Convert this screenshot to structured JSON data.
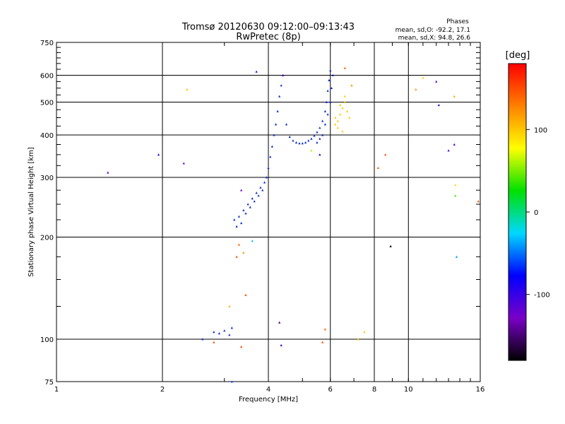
{
  "chart_data": {
    "type": "scatter",
    "title": "Tromsø 20120630 09:12:00–09:13:43",
    "subtitle": "RwPretec (8p)",
    "xlabel": "Frequency [MHz]",
    "ylabel": "Stationary phase Virtual Height [km]",
    "x_scale": "log",
    "y_scale": "log",
    "xlim": [
      1,
      16
    ],
    "ylim": [
      75,
      750
    ],
    "x_ticks": [
      1,
      2,
      4,
      6,
      8,
      10,
      16
    ],
    "y_ticks": [
      75,
      100,
      200,
      300,
      400,
      500,
      600,
      750
    ],
    "grid": true,
    "annotation": {
      "title": "Phases",
      "line1": "mean, sd,O: -92.2, 17.1",
      "line2": "mean, sd,X:  94.8, 26.6"
    },
    "colorbar": {
      "label": "[deg]",
      "ticks": [
        100,
        0,
        -100
      ],
      "range": [
        -180,
        180
      ],
      "colors": [
        "#000000",
        "#7a00c8",
        "#0000ff",
        "#00d8ff",
        "#00e000",
        "#ffff00",
        "#ff8000",
        "#ff0000"
      ]
    },
    "o_trace": {
      "color": "#0a2cd8",
      "points": [
        [
          3.2,
          225
        ],
        [
          3.3,
          230
        ],
        [
          3.4,
          240
        ],
        [
          3.5,
          250
        ],
        [
          3.6,
          260
        ],
        [
          3.7,
          270
        ],
        [
          3.8,
          280
        ],
        [
          3.9,
          290
        ],
        [
          3.95,
          300
        ],
        [
          4.0,
          320
        ],
        [
          4.05,
          345
        ],
        [
          4.1,
          370
        ],
        [
          4.15,
          400
        ],
        [
          4.2,
          430
        ],
        [
          4.25,
          470
        ],
        [
          4.3,
          520
        ],
        [
          4.35,
          560
        ],
        [
          4.4,
          600
        ],
        [
          4.5,
          430
        ],
        [
          4.6,
          395
        ],
        [
          4.7,
          385
        ],
        [
          4.8,
          380
        ],
        [
          4.9,
          378
        ],
        [
          5.0,
          378
        ],
        [
          5.1,
          380
        ],
        [
          5.2,
          385
        ],
        [
          5.3,
          390
        ],
        [
          5.4,
          398
        ],
        [
          5.5,
          408
        ],
        [
          5.6,
          420
        ],
        [
          5.7,
          440
        ],
        [
          5.8,
          470
        ],
        [
          5.85,
          500
        ],
        [
          5.9,
          540
        ],
        [
          5.95,
          580
        ],
        [
          6.0,
          620
        ],
        [
          5.5,
          380
        ],
        [
          5.6,
          390
        ],
        [
          5.7,
          400
        ],
        [
          5.8,
          430
        ],
        [
          5.9,
          460
        ],
        [
          6.0,
          500
        ],
        [
          6.05,
          550
        ],
        [
          6.1,
          600
        ],
        [
          2.9,
          104
        ],
        [
          3.0,
          106
        ],
        [
          3.1,
          103
        ],
        [
          3.15,
          108
        ],
        [
          2.8,
          105
        ],
        [
          2.6,
          100
        ],
        [
          3.25,
          215
        ],
        [
          3.35,
          220
        ],
        [
          3.45,
          235
        ],
        [
          3.55,
          245
        ],
        [
          3.65,
          255
        ],
        [
          3.75,
          265
        ],
        [
          3.85,
          275
        ]
      ]
    },
    "x_trace": {
      "color": "#ffcc00",
      "points": [
        [
          6.2,
          430
        ],
        [
          6.3,
          440
        ],
        [
          6.4,
          460
        ],
        [
          6.5,
          480
        ],
        [
          6.6,
          500
        ],
        [
          6.7,
          470
        ],
        [
          6.8,
          450
        ],
        [
          6.3,
          420
        ],
        [
          6.5,
          410
        ],
        [
          6.2,
          450
        ],
        [
          6.4,
          490
        ],
        [
          6.6,
          520
        ],
        [
          6.9,
          560
        ]
      ]
    },
    "scatter_points": [
      [
        1.4,
        310,
        -110
      ],
      [
        1.95,
        350,
        -95
      ],
      [
        2.3,
        330,
        -120
      ],
      [
        2.35,
        545,
        100
      ],
      [
        3.7,
        615,
        -95
      ],
      [
        4.4,
        600,
        -120
      ],
      [
        3.35,
        275,
        -120
      ],
      [
        3.6,
        195,
        -30
      ],
      [
        3.3,
        190,
        140
      ],
      [
        3.4,
        180,
        120
      ],
      [
        3.25,
        175,
        150
      ],
      [
        3.45,
        135,
        150
      ],
      [
        3.1,
        125,
        110
      ],
      [
        3.35,
        95,
        150
      ],
      [
        2.8,
        98,
        150
      ],
      [
        4.3,
        112,
        -150
      ],
      [
        4.35,
        96,
        -100
      ],
      [
        5.7,
        98,
        150
      ],
      [
        5.8,
        107,
        140
      ],
      [
        6.6,
        630,
        140
      ],
      [
        6.9,
        560,
        120
      ],
      [
        7.2,
        100,
        100
      ],
      [
        7.5,
        105,
        100
      ],
      [
        8.2,
        320,
        140
      ],
      [
        8.6,
        350,
        150
      ],
      [
        8.9,
        188,
        -180
      ],
      [
        10.5,
        545,
        120
      ],
      [
        11.0,
        590,
        100
      ],
      [
        12.0,
        575,
        -110
      ],
      [
        12.2,
        490,
        -100
      ],
      [
        13.0,
        360,
        -105
      ],
      [
        13.5,
        375,
        -100
      ],
      [
        13.5,
        520,
        110
      ],
      [
        13.6,
        265,
        40
      ],
      [
        13.6,
        285,
        90
      ],
      [
        13.7,
        175,
        -40
      ],
      [
        15.8,
        255,
        150
      ],
      [
        3.15,
        75,
        -60
      ],
      [
        5.6,
        350,
        -80
      ],
      [
        5.3,
        360,
        60
      ]
    ]
  }
}
